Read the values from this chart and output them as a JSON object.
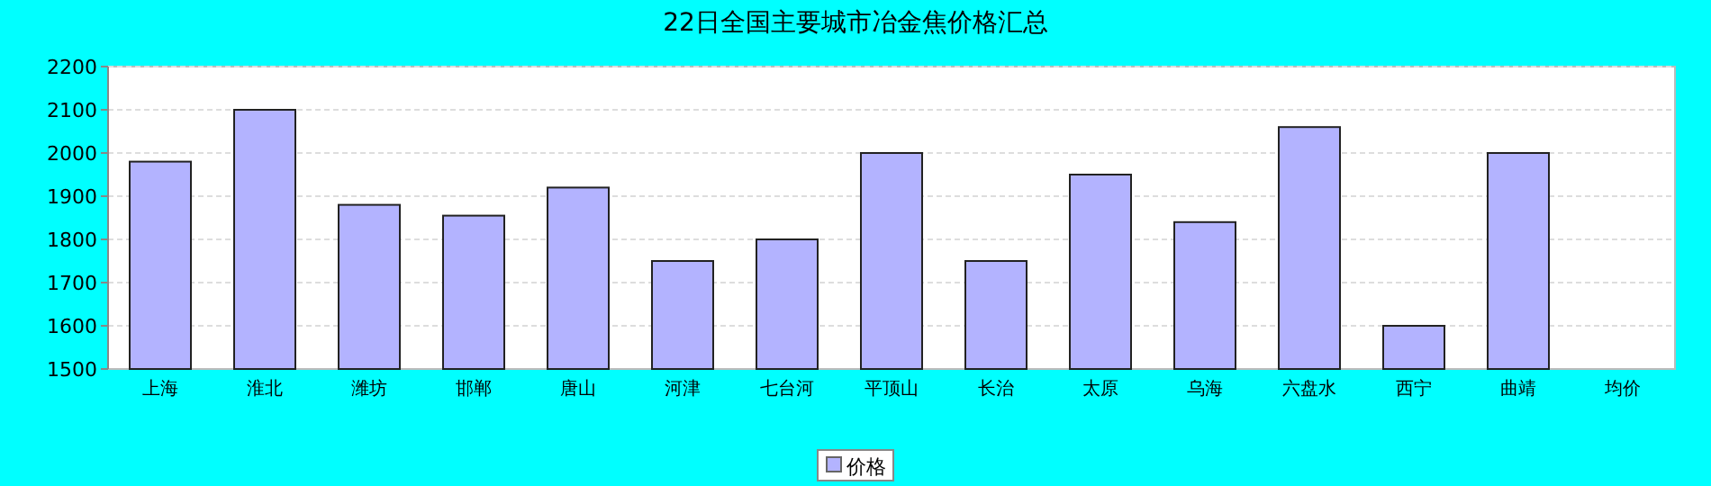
{
  "chart_data": {
    "type": "bar",
    "title": "22日全国主要城市冶金焦价格汇总",
    "categories": [
      "上海",
      "淮北",
      "潍坊",
      "邯郸",
      "唐山",
      "河津",
      "七台河",
      "平顶山",
      "长治",
      "太原",
      "乌海",
      "六盘水",
      "西宁",
      "曲靖",
      "均价"
    ],
    "series": [
      {
        "name": "价格",
        "color": "#b3b3ff",
        "values": [
          1980,
          2100,
          1880,
          1855,
          1920,
          1750,
          1800,
          2000,
          1750,
          1950,
          1840,
          2060,
          1600,
          2000,
          null
        ]
      }
    ],
    "ylim": [
      1500,
      2200
    ],
    "yticks": [
      1500,
      1600,
      1700,
      1800,
      1900,
      2000,
      2100,
      2200
    ],
    "grid": "y",
    "legend": "bottom"
  }
}
